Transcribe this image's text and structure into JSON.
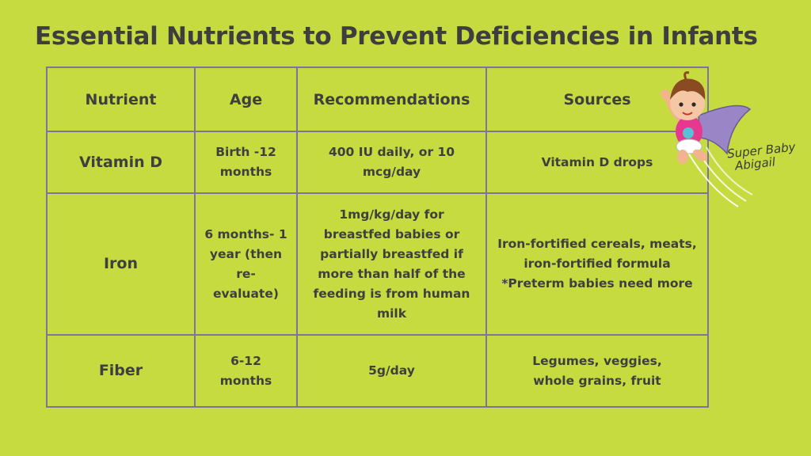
{
  "title": "Essential Nutrients to Prevent Deficiencies in Infants",
  "table": {
    "headers": [
      "Nutrient",
      "Age",
      "Recommendations",
      "Sources"
    ],
    "rows": [
      {
        "nutrient": "Vitamin D",
        "age": [
          "Birth -12",
          "months"
        ],
        "recommendations": [
          "400 IU daily, or 10",
          "mcg/day"
        ],
        "sources": [
          "Vitamin D drops"
        ]
      },
      {
        "nutrient": "Iron",
        "age": [
          "6 months- 1",
          "year (then",
          "re-evaluate)"
        ],
        "recommendations": [
          "1mg/kg/day for",
          "breastfed babies or",
          "partially breastfed if",
          "more than half of the",
          "feeding is from human",
          "milk"
        ],
        "sources": [
          "Iron-fortified cereals, meats,",
          "iron-fortified formula",
          "*Preterm babies need more"
        ]
      },
      {
        "nutrient": "Fiber",
        "age": [
          "6-12",
          "months"
        ],
        "recommendations": [
          "5g/day"
        ],
        "sources": [
          "Legumes, veggies,",
          "whole grains, fruit"
        ]
      }
    ]
  },
  "logo": {
    "line1": "Super Baby",
    "line2": "Abigail"
  },
  "colors": {
    "background": "#c5db3f",
    "border": "#7c73a3",
    "text": "#3f3f3f"
  }
}
